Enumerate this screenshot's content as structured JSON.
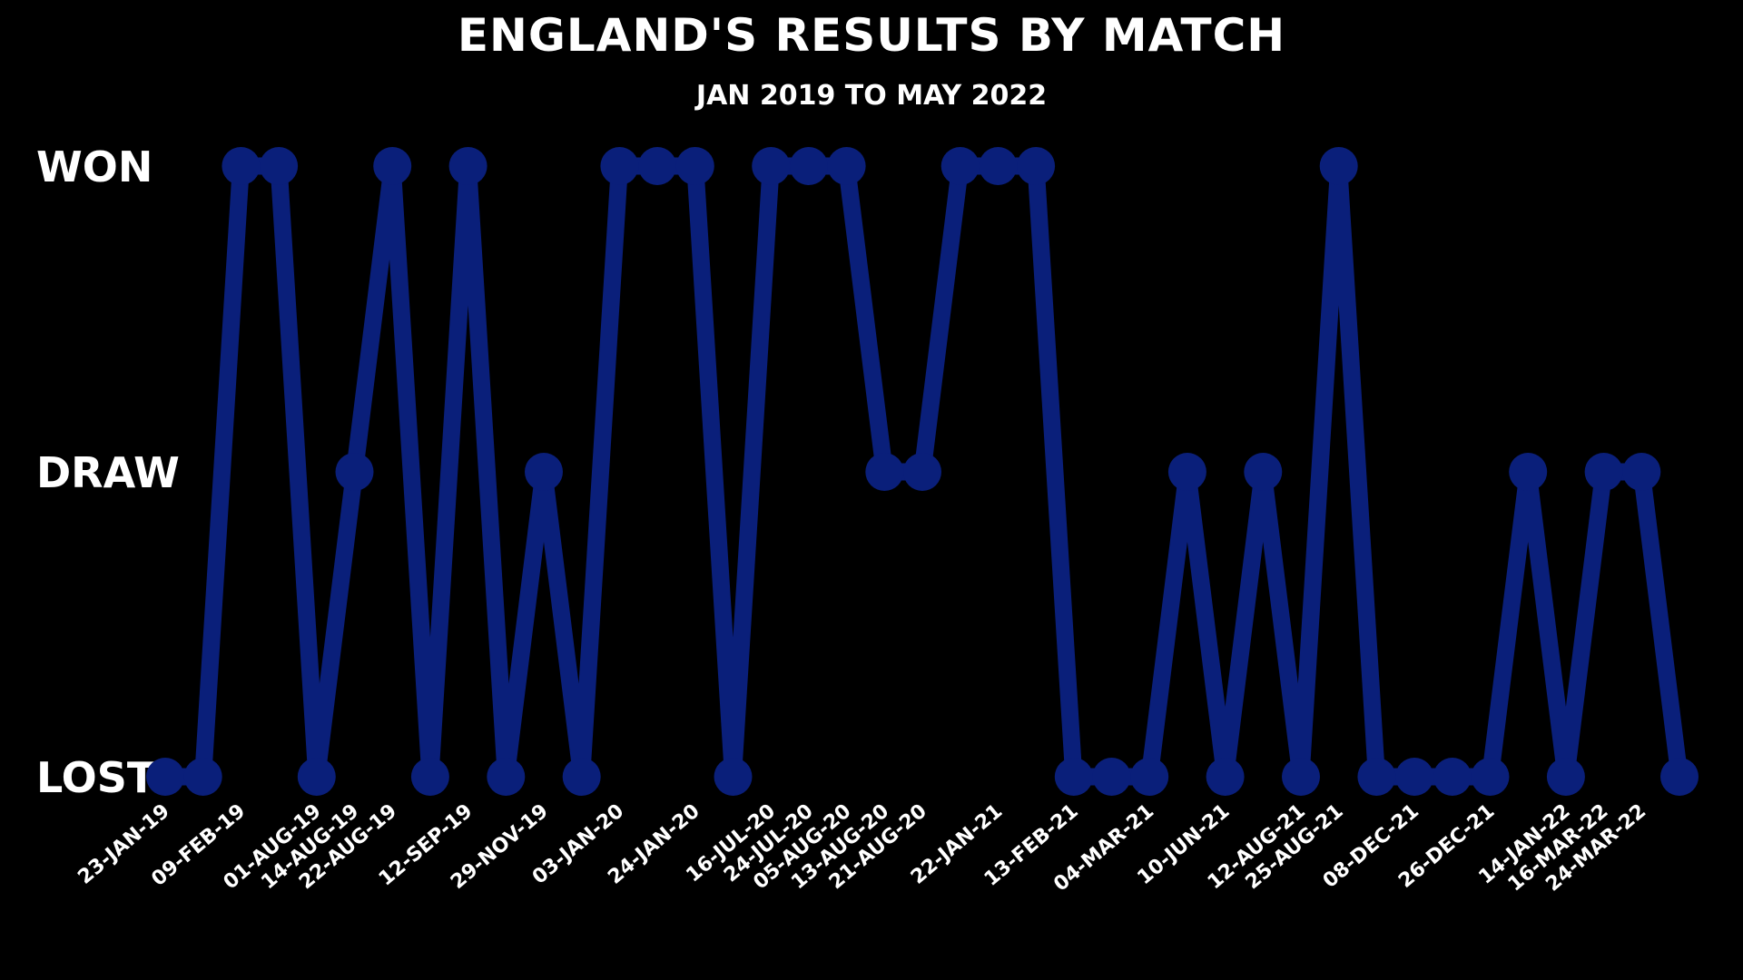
{
  "chart_data": {
    "type": "line",
    "title": "ENGLAND'S RESULTS BY MATCH",
    "subtitle": "JAN 2019 TO MAY 2022",
    "y_categories": [
      "LOST",
      "DRAW",
      "WON"
    ],
    "line_color": "#0a1f7a",
    "background_color": "#000000",
    "text_color": "#ffffff",
    "tick_labels": [
      "23-JAN-19",
      "09-FEB-19",
      "01-AUG-19",
      "14-AUG-19",
      "22-AUG-19",
      "12-SEP-19",
      "29-NOV-19",
      "03-JAN-20",
      "24-JAN-20",
      "16-JUL-20",
      "24-JUL-20",
      "05-AUG-20",
      "13-AUG-20",
      "21-AUG-20",
      "22-JAN-21",
      "13-FEB-21",
      "04-MAR-21",
      "10-JUN-21",
      "12-AUG-21",
      "25-AUG-21",
      "08-DEC-21",
      "26-DEC-21",
      "14-JAN-22",
      "16-MAR-22",
      "24-MAR-22"
    ],
    "tick_positions": [
      0,
      2,
      4,
      5,
      6,
      8,
      10,
      12,
      14,
      16,
      17,
      18,
      19,
      20,
      22,
      24,
      26,
      28,
      30,
      31,
      33,
      35,
      37,
      38,
      39
    ],
    "values": [
      "LOST",
      "LOST",
      "WON",
      "WON",
      "LOST",
      "DRAW",
      "WON",
      "LOST",
      "WON",
      "LOST",
      "DRAW",
      "LOST",
      "WON",
      "WON",
      "WON",
      "LOST",
      "WON",
      "WON",
      "WON",
      "DRAW",
      "DRAW",
      "WON",
      "WON",
      "WON",
      "LOST",
      "LOST",
      "LOST",
      "DRAW",
      "LOST",
      "DRAW",
      "LOST",
      "WON",
      "LOST",
      "LOST",
      "LOST",
      "LOST",
      "DRAW",
      "LOST",
      "DRAW",
      "DRAW",
      "LOST"
    ]
  }
}
